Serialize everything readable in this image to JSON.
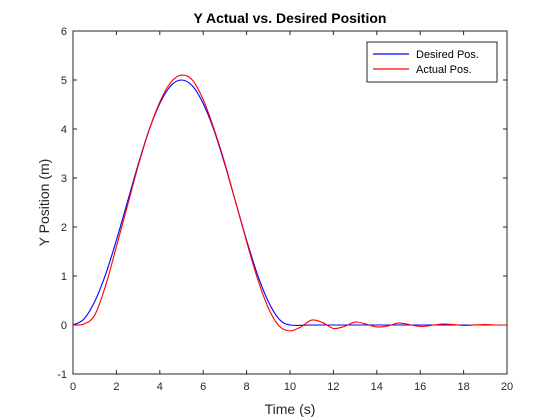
{
  "chart_data": {
    "type": "line",
    "title": "Y Actual vs. Desired Position",
    "xlabel": "Time (s)",
    "ylabel": "Y Position (m)",
    "xlim": [
      0,
      20
    ],
    "ylim": [
      -1,
      6
    ],
    "xticks": [
      "0",
      "2",
      "4",
      "6",
      "8",
      "10",
      "12",
      "14",
      "16",
      "18",
      "20"
    ],
    "yticks": [
      "-1",
      "0",
      "1",
      "2",
      "3",
      "4",
      "5",
      "6"
    ],
    "grid": false,
    "legend_position": "top-right",
    "series": [
      {
        "name": "Desired Pos.",
        "color": "#0000ff",
        "x": [
          0,
          0.5,
          1,
          1.5,
          2,
          2.5,
          3,
          3.5,
          4,
          4.5,
          5,
          5.5,
          6,
          6.5,
          7,
          7.5,
          8,
          8.5,
          9,
          9.5,
          10,
          11,
          12,
          13,
          14,
          15,
          16,
          17,
          18,
          19,
          20
        ],
        "y": [
          0,
          0.12,
          0.48,
          1.03,
          1.73,
          2.5,
          3.27,
          3.97,
          4.52,
          4.88,
          5.0,
          4.88,
          4.52,
          3.97,
          3.27,
          2.5,
          1.73,
          1.03,
          0.48,
          0.12,
          0.0,
          0,
          0,
          0,
          0,
          0,
          0,
          0,
          0,
          0,
          0
        ]
      },
      {
        "name": "Actual Pos.",
        "color": "#ff0000",
        "x": [
          0,
          0.5,
          1,
          1.5,
          2,
          2.5,
          3,
          3.5,
          4,
          4.5,
          5,
          5.5,
          6,
          6.5,
          7,
          7.5,
          8,
          8.5,
          9,
          9.5,
          10,
          10.5,
          11,
          11.5,
          12,
          12.5,
          13,
          13.5,
          14,
          14.5,
          15,
          15.5,
          16,
          16.5,
          17,
          17.5,
          18,
          18.5,
          19,
          19.5,
          20
        ],
        "y": [
          0,
          0.02,
          0.2,
          0.8,
          1.6,
          2.42,
          3.24,
          3.97,
          4.55,
          4.95,
          5.1,
          5.0,
          4.6,
          4.0,
          3.3,
          2.5,
          1.7,
          0.95,
          0.35,
          -0.02,
          -0.12,
          -0.04,
          0.1,
          0.05,
          -0.07,
          -0.03,
          0.06,
          0.02,
          -0.04,
          -0.02,
          0.04,
          0.01,
          -0.03,
          -0.01,
          0.02,
          0.01,
          -0.01,
          0.0,
          0.01,
          0.0,
          0.0
        ]
      }
    ]
  }
}
